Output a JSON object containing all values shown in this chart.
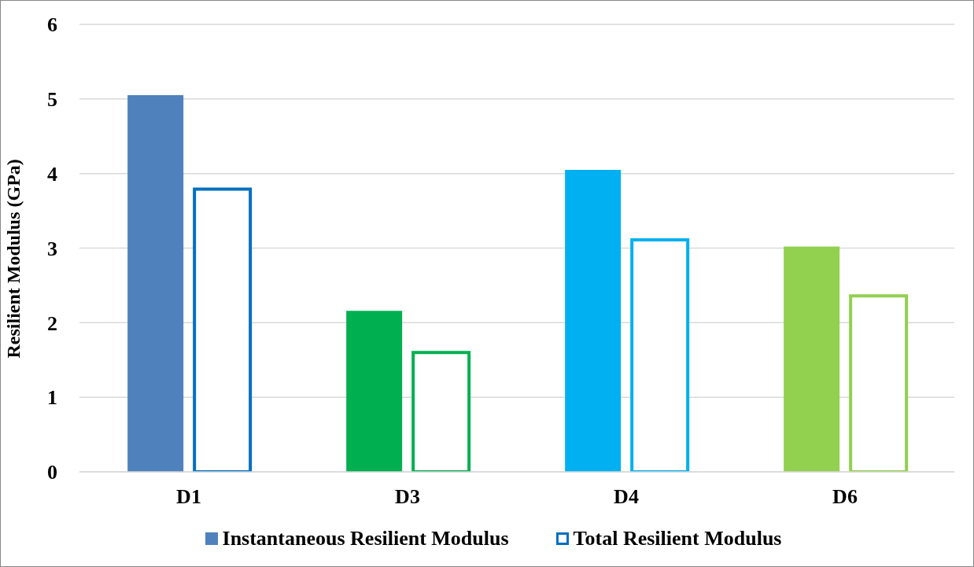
{
  "chart_data": {
    "type": "bar",
    "ylabel": "Resilient Modulus (GPa)",
    "categories": [
      "D1",
      "D3",
      "D4",
      "D6"
    ],
    "series": [
      {
        "name": "Instantaneous Resilient Modulus",
        "colors": [
          "#4f81bd",
          "#00b050",
          "#00b0f0",
          "#92d050"
        ],
        "values": [
          5.05,
          2.16,
          4.05,
          3.02
        ]
      },
      {
        "name": "Total Resilient Modulus",
        "colors": [
          "#0070c0",
          "#00b050",
          "#00b0f0",
          "#92d050"
        ],
        "values": [
          3.79,
          1.6,
          3.11,
          2.36
        ]
      }
    ],
    "ylim": [
      0,
      6
    ],
    "yticks": [
      0,
      1,
      2,
      3,
      4,
      5,
      6
    ],
    "grid": "y",
    "legend": "bottom"
  }
}
